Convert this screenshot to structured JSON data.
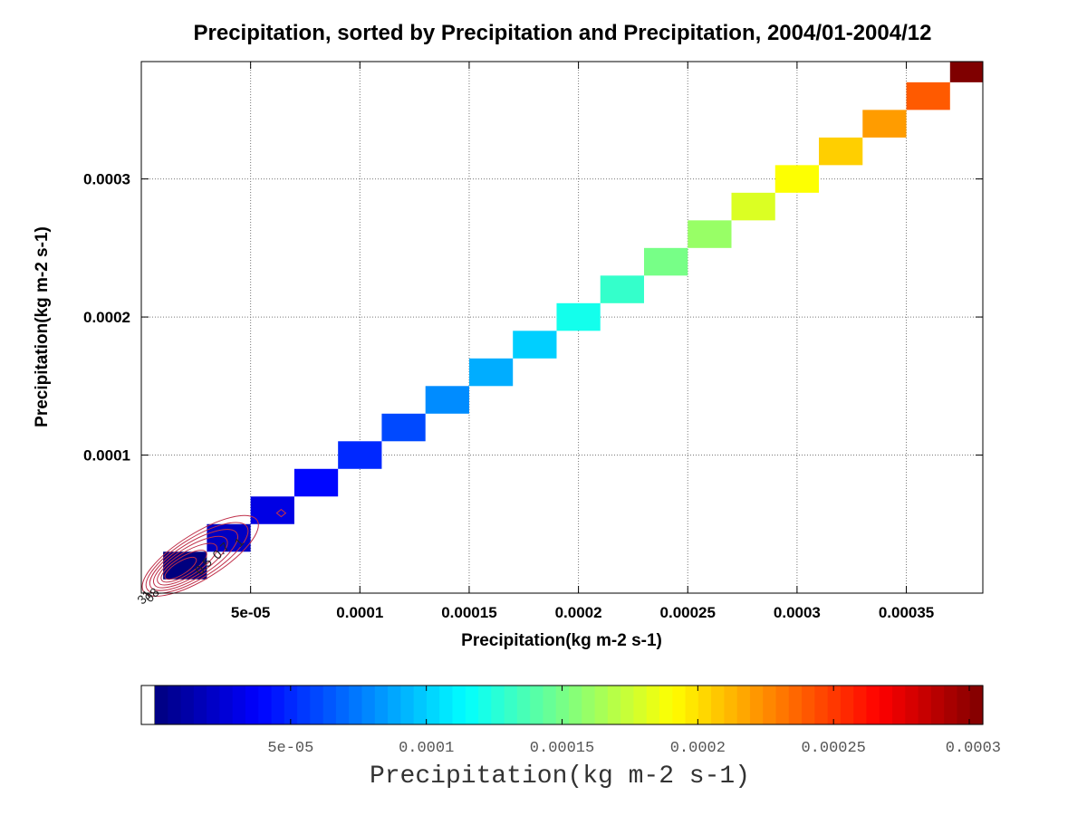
{
  "chart_data": {
    "type": "heatmap",
    "title": "Precipitation, sorted by Precipitation and Precipitation, 2004/01-2004/12",
    "xlabel": "Precipitation(kg m-2 s-1)",
    "ylabel": "Precipitation(kg m-2 s-1)",
    "xlim": [
      0.0,
      0.000385
    ],
    "ylim": [
      0.0,
      0.000385
    ],
    "grid": true,
    "x_tick_values": [
      5e-05,
      0.0001,
      0.00015,
      0.0002,
      0.00025,
      0.0003,
      0.00035
    ],
    "x_tick_labels": [
      "5e-05",
      "0.0001",
      "0.00015",
      "0.0002",
      "0.00025",
      "0.0003",
      "0.00035"
    ],
    "y_tick_values": [
      0.0001,
      0.0002,
      0.0003
    ],
    "y_tick_labels": [
      "0.0001",
      "0.0002",
      "0.0003"
    ],
    "cells": [
      {
        "x0": 1e-05,
        "x1": 3e-05,
        "y0": 1e-05,
        "y1": 3e-05,
        "value": 0.0
      },
      {
        "x0": 3e-05,
        "x1": 5e-05,
        "y0": 3e-05,
        "y1": 5e-05,
        "value": 2e-05
      },
      {
        "x0": 5e-05,
        "x1": 7e-05,
        "y0": 5e-05,
        "y1": 7e-05,
        "value": 3e-05
      },
      {
        "x0": 7e-05,
        "x1": 9e-05,
        "y0": 7e-05,
        "y1": 9e-05,
        "value": 4e-05
      },
      {
        "x0": 9e-05,
        "x1": 0.00011,
        "y0": 9e-05,
        "y1": 0.00011,
        "value": 5e-05
      },
      {
        "x0": 0.00011,
        "x1": 0.00013,
        "y0": 0.00011,
        "y1": 0.00013,
        "value": 6e-05
      },
      {
        "x0": 0.00013,
        "x1": 0.00015,
        "y0": 0.00013,
        "y1": 0.00015,
        "value": 8e-05
      },
      {
        "x0": 0.00015,
        "x1": 0.00017,
        "y0": 0.00015,
        "y1": 0.00017,
        "value": 9e-05
      },
      {
        "x0": 0.00017,
        "x1": 0.00019,
        "y0": 0.00017,
        "y1": 0.00019,
        "value": 0.0001
      },
      {
        "x0": 0.00019,
        "x1": 0.00021,
        "y0": 0.00019,
        "y1": 0.00021,
        "value": 0.00012
      },
      {
        "x0": 0.00021,
        "x1": 0.00023,
        "y0": 0.00021,
        "y1": 0.00023,
        "value": 0.00013
      },
      {
        "x0": 0.00023,
        "x1": 0.00025,
        "y0": 0.00023,
        "y1": 0.00025,
        "value": 0.00015
      },
      {
        "x0": 0.00025,
        "x1": 0.00027,
        "y0": 0.00025,
        "y1": 0.00027,
        "value": 0.00016
      },
      {
        "x0": 0.00027,
        "x1": 0.00029,
        "y0": 0.00027,
        "y1": 0.00029,
        "value": 0.00018
      },
      {
        "x0": 0.00029,
        "x1": 0.00031,
        "y0": 0.00029,
        "y1": 0.00031,
        "value": 0.00019
      },
      {
        "x0": 0.00031,
        "x1": 0.00033,
        "y0": 0.00031,
        "y1": 0.00033,
        "value": 0.000205
      },
      {
        "x0": 0.00033,
        "x1": 0.00035,
        "y0": 0.00033,
        "y1": 0.00035,
        "value": 0.00022
      },
      {
        "x0": 0.00035,
        "x1": 0.00037,
        "y0": 0.00035,
        "y1": 0.00037,
        "value": 0.00024
      },
      {
        "x0": 0.00037,
        "x1": 0.00039,
        "y0": 0.00037,
        "y1": 0.00039,
        "value": 0.000305
      }
    ],
    "contours": {
      "color": "#c0304a",
      "labels": [
        "31",
        "08",
        "0.5",
        "0.7",
        "1"
      ]
    },
    "colorbar": {
      "label": "Precipitation(kg m-2 s-1)",
      "range": [
        0.0,
        0.000305
      ],
      "tick_values": [
        5e-05,
        0.0001,
        0.00015,
        0.0002,
        0.00025,
        0.0003
      ],
      "tick_labels": [
        "5e-05",
        "0.0001",
        "0.00015",
        "0.0002",
        "0.00025",
        "0.0003"
      ],
      "colormap": [
        "#00007f",
        "#0000ff",
        "#007fff",
        "#00ffff",
        "#7fff7f",
        "#ffff00",
        "#ff7f00",
        "#ff0000",
        "#7f0000"
      ]
    }
  }
}
